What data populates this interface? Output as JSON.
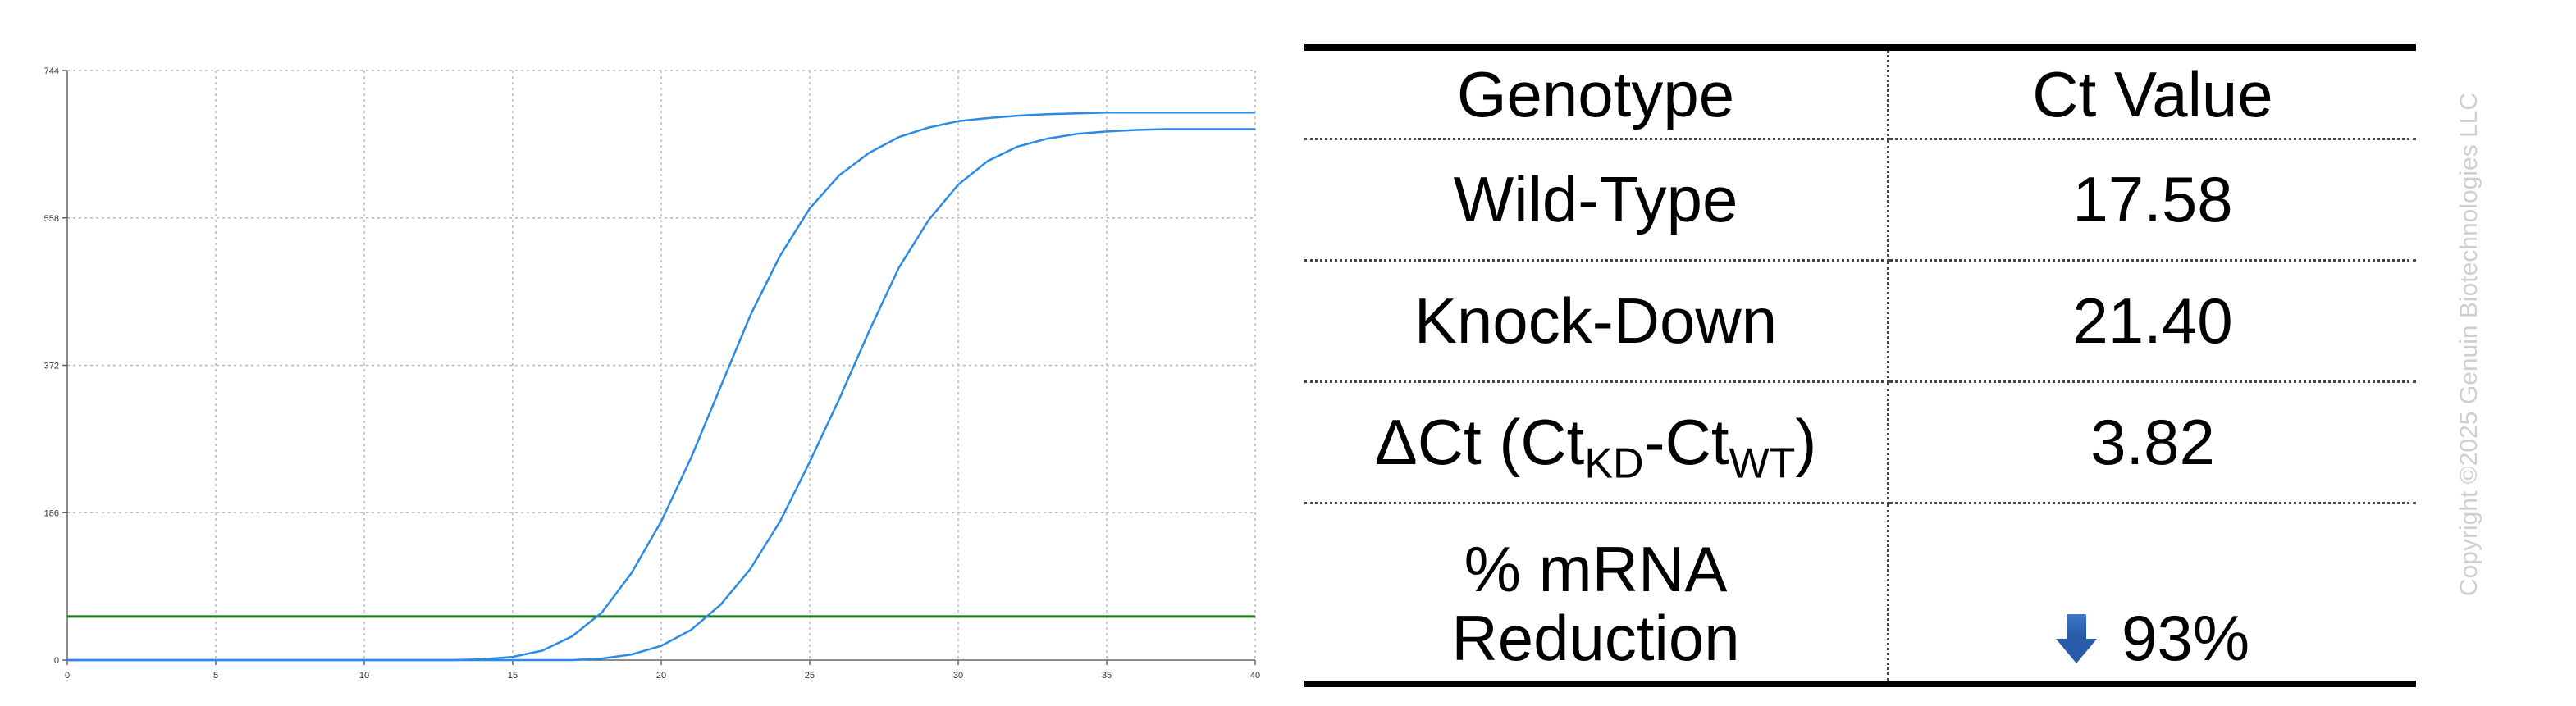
{
  "chart_data": {
    "type": "line",
    "title": "",
    "xlabel": "",
    "ylabel": "",
    "xlim": [
      0,
      40
    ],
    "ylim": [
      0,
      744
    ],
    "x_ticks": [
      0,
      5,
      10,
      15,
      20,
      25,
      30,
      35,
      40
    ],
    "y_ticks": [
      0,
      186,
      372,
      558,
      744
    ],
    "grid": true,
    "threshold": 55,
    "colors": {
      "curve": "#2b8ae6",
      "threshold": "#1a7a1a",
      "grid": "#b8b8b8"
    },
    "series": [
      {
        "x": [
          0,
          12,
          13,
          14,
          15,
          16,
          17,
          18,
          19,
          20,
          21,
          22,
          23,
          24,
          25,
          26,
          27,
          28,
          29,
          30,
          31,
          32,
          33,
          34,
          35,
          36,
          37,
          38,
          39,
          40
        ],
        "values": [
          0,
          0,
          0,
          1,
          4,
          12,
          30,
          60,
          110,
          175,
          255,
          345,
          435,
          510,
          570,
          612,
          640,
          660,
          672,
          680,
          684,
          687,
          689,
          690,
          691,
          691,
          691,
          691,
          691,
          691
        ]
      },
      {
        "x": [
          0,
          16,
          17,
          18,
          19,
          20,
          21,
          22,
          23,
          24,
          25,
          26,
          27,
          28,
          29,
          30,
          31,
          32,
          33,
          34,
          35,
          36,
          37,
          38,
          39,
          40
        ],
        "values": [
          0,
          0,
          0,
          2,
          7,
          18,
          38,
          70,
          115,
          175,
          250,
          330,
          415,
          495,
          555,
          600,
          630,
          648,
          658,
          664,
          667,
          669,
          670,
          670,
          670,
          670
        ]
      }
    ]
  },
  "table": {
    "headers": [
      "Genotype",
      "Ct Value"
    ],
    "rows": [
      {
        "label": "Wild-Type",
        "value": "17.58"
      },
      {
        "label": "Knock-Down",
        "value": "21.40"
      }
    ],
    "delta": {
      "label_main": "ΔCt (Ct",
      "sub1": "KD",
      "mid": "-Ct",
      "sub2": "WT",
      "close": ")",
      "value": "3.82"
    },
    "reduction": {
      "label_line1": "% mRNA",
      "label_line2": "Reduction",
      "value": "93%",
      "icon": "down-arrow-icon"
    }
  },
  "copyright": "Copyright ©2025 Genuin Biotechnologies LLC"
}
